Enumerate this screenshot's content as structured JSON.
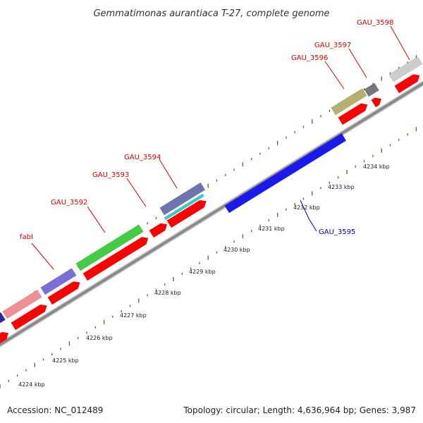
{
  "title": "Gemmatimonas aurantiaca T-27, complete genome",
  "footer": {
    "accession": "Accession: NC_012489",
    "summary": "Topology: circular; Length: 4,636,964 bp; Genes: 3,987"
  },
  "ticks": [
    "4224 kbp",
    "4225 kbp",
    "4226 kbp",
    "4227 kbp",
    "4228 kbp",
    "4229 kbp",
    "4230 kbp",
    "4231 kbp",
    "4232 kbp",
    "4233 kbp",
    "4234 kbp"
  ],
  "gene_labels": [
    {
      "id": "fabI",
      "text": "fabI",
      "color": "#dd0000"
    },
    {
      "id": "GAU_3592",
      "text": "GAU_3592",
      "color": "#dd0000"
    },
    {
      "id": "GAU_3593",
      "text": "GAU_3593",
      "color": "#dd0000"
    },
    {
      "id": "GAU_3594",
      "text": "GAU_3594",
      "color": "#dd0000"
    },
    {
      "id": "GAU_3595",
      "text": "GAU_3595",
      "color": "#0000bb"
    },
    {
      "id": "GAU_3596",
      "text": "GAU_3596",
      "color": "#dd0000"
    },
    {
      "id": "GAU_3597",
      "text": "GAU_3597",
      "color": "#dd0000"
    },
    {
      "id": "GAU_3598",
      "text": "GAU_3598",
      "color": "#dd0000"
    }
  ],
  "colors": {
    "cds": "#ff0000",
    "backbone": "#8c8c8c",
    "tick_dots": "#2e7d1e",
    "feature_fabI": "#7a6fd6",
    "feature_GAU_3592": "#44cc44",
    "feature_GAU_3594": "#6f74b0",
    "feature_GAU_3595": "#1a1aee",
    "feature_GAU_3596": "#b5b070",
    "feature_GAU_3597": "#777777",
    "feature_GAU_3598": "#cccccc",
    "feature_pink": "#ef8f93"
  }
}
